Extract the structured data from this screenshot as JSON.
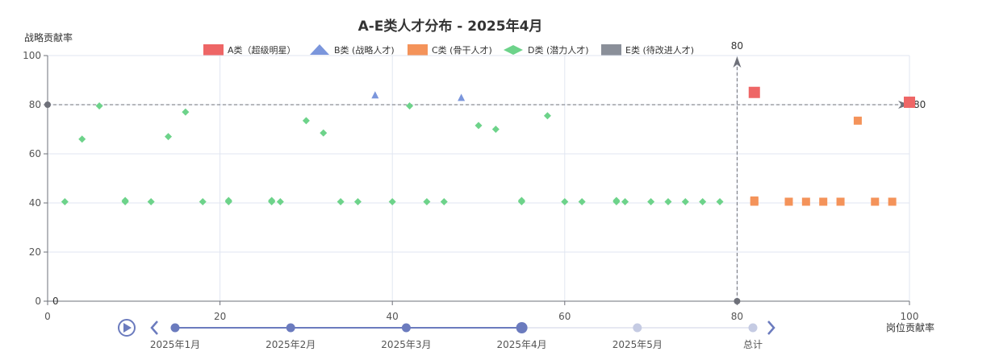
{
  "chart_data": {
    "type": "scatter",
    "title": "A-E类人才分布 - 2025年4月",
    "xlabel": "岗位贡献率",
    "ylabel": "战略贡献率",
    "xlim": [
      0,
      100
    ],
    "ylim": [
      0,
      100
    ],
    "xticks": [
      0,
      20,
      40,
      60,
      80,
      100
    ],
    "yticks": [
      0,
      20,
      40,
      60,
      80,
      100
    ],
    "grid": true,
    "legend_position": "top-center",
    "series": [
      {
        "name": "A类（超级明星）",
        "symbol": "square",
        "color": "#ee6666",
        "points": [
          [
            82,
            85
          ],
          [
            100,
            81
          ]
        ]
      },
      {
        "name": "B类 (战略人才)",
        "symbol": "triangle",
        "color": "#7b96dc",
        "points": [
          [
            38,
            84
          ],
          [
            48,
            83
          ]
        ]
      },
      {
        "name": "C类 (骨干人才)",
        "symbol": "square",
        "color": "#f4935a",
        "points": [
          [
            82,
            41
          ],
          [
            82,
            40.5
          ],
          [
            86,
            40.5
          ],
          [
            88,
            40.5
          ],
          [
            90,
            40.5
          ],
          [
            92,
            40.5
          ],
          [
            94,
            73.5
          ],
          [
            96,
            40.5
          ],
          [
            98,
            40.5
          ]
        ]
      },
      {
        "name": "D类 (潜力人才)",
        "symbol": "diamond",
        "color": "#6dd38a",
        "points": [
          [
            2,
            40.5
          ],
          [
            4,
            66
          ],
          [
            6,
            79.5
          ],
          [
            9,
            41
          ],
          [
            9,
            40.5
          ],
          [
            12,
            40.5
          ],
          [
            14,
            67
          ],
          [
            16,
            77
          ],
          [
            18,
            40.5
          ],
          [
            21,
            41
          ],
          [
            21,
            40.5
          ],
          [
            26,
            41
          ],
          [
            26,
            40.5
          ],
          [
            27,
            40.5
          ],
          [
            30,
            73.5
          ],
          [
            32,
            68.5
          ],
          [
            34,
            40.5
          ],
          [
            36,
            40.5
          ],
          [
            40,
            40.5
          ],
          [
            42,
            79.5
          ],
          [
            44,
            40.5
          ],
          [
            46,
            40.5
          ],
          [
            50,
            71.5
          ],
          [
            52,
            70
          ],
          [
            55,
            41
          ],
          [
            55,
            40.5
          ],
          [
            58,
            75.5
          ],
          [
            60,
            40.5
          ],
          [
            62,
            40.5
          ],
          [
            66,
            41
          ],
          [
            66,
            40.5
          ],
          [
            67,
            40.5
          ],
          [
            70,
            40.5
          ],
          [
            72,
            40.5
          ],
          [
            74,
            40.5
          ],
          [
            76,
            40.5
          ],
          [
            78,
            40.5
          ]
        ]
      },
      {
        "name": "E类 (待改进人才)",
        "symbol": "square",
        "color": "#8a8f99",
        "points": []
      }
    ],
    "reference_lines": {
      "vertical_x": 80,
      "vertical_label": "80",
      "horizontal_y": 80,
      "horizontal_label": "80",
      "zero_label": "0"
    }
  },
  "timeline": {
    "items": [
      "2025年1月",
      "2025年2月",
      "2025年3月",
      "2025年4月",
      "2025年5月",
      "总计"
    ],
    "current_index": 3
  },
  "colors": {
    "axis": "#6e7079",
    "grid": "#e0e6f1",
    "timeline_active": "#6b7bbe",
    "timeline_inactive": "#c5cbe3",
    "reference_line": "#6e7079"
  },
  "icons": [
    "play-icon",
    "chevron-left-icon",
    "chevron-right-icon"
  ]
}
